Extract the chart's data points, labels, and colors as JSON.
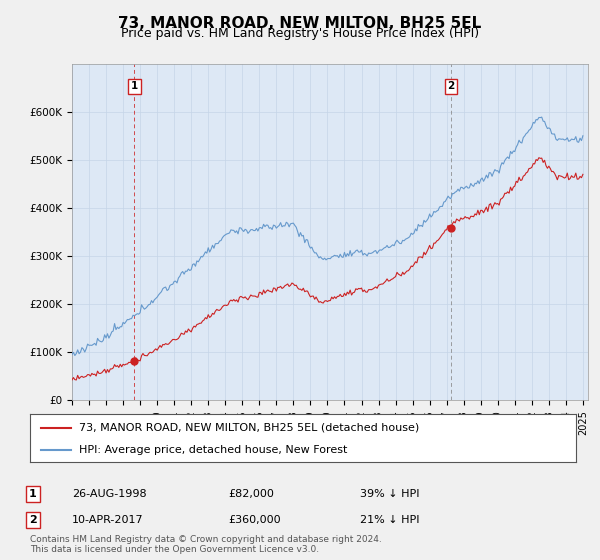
{
  "title": "73, MANOR ROAD, NEW MILTON, BH25 5EL",
  "subtitle": "Price paid vs. HM Land Registry's House Price Index (HPI)",
  "ylim": [
    0,
    700000
  ],
  "yticks": [
    0,
    100000,
    200000,
    300000,
    400000,
    500000,
    600000
  ],
  "ytick_labels": [
    "£0",
    "£100K",
    "£200K",
    "£300K",
    "£400K",
    "£500K",
    "£600K"
  ],
  "background_color": "#f0f0f0",
  "plot_bg_color": "#dde8f5",
  "hpi_color": "#6699cc",
  "price_color": "#cc2222",
  "marker1_date_idx": 45,
  "marker2_date_idx": 267,
  "marker1_price": 82000,
  "marker2_price": 360000,
  "marker1_label": "1",
  "marker2_label": "2",
  "legend_entries": [
    "73, MANOR ROAD, NEW MILTON, BH25 5EL (detached house)",
    "HPI: Average price, detached house, New Forest"
  ],
  "table_rows": [
    [
      "1",
      "26-AUG-1998",
      "£82,000",
      "39% ↓ HPI"
    ],
    [
      "2",
      "10-APR-2017",
      "£360,000",
      "21% ↓ HPI"
    ]
  ],
  "footnote": "Contains HM Land Registry data © Crown copyright and database right 2024.\nThis data is licensed under the Open Government Licence v3.0.",
  "title_fontsize": 11,
  "subtitle_fontsize": 9,
  "tick_fontsize": 7.5,
  "legend_fontsize": 8,
  "table_fontsize": 8,
  "footnote_fontsize": 6.5
}
